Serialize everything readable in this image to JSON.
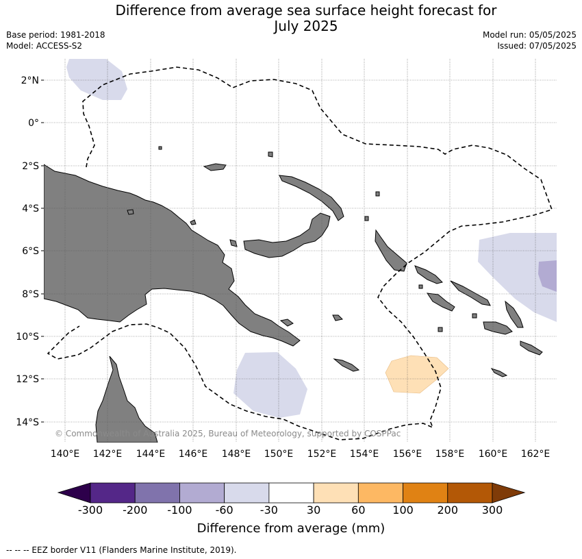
{
  "title_line1": "Difference from average sea surface height forecast for",
  "title_line2": "July 2025",
  "meta": {
    "base_period": "Base period: 1981-2018",
    "model": "Model: ACCESS-S2",
    "model_run": "Model run: 05/05/2025",
    "issued": "Issued: 07/05/2025"
  },
  "lat_labels": [
    "2°N",
    "0°",
    "2°S",
    "4°S",
    "6°S",
    "8°S",
    "10°S",
    "12°S",
    "14°S"
  ],
  "lon_labels": [
    "140°E",
    "142°E",
    "144°E",
    "146°E",
    "148°E",
    "150°E",
    "152°E",
    "154°E",
    "156°E",
    "158°E",
    "160°E",
    "162°E"
  ],
  "copyright": "© Commonwealth of Australia 2025, Bureau of Meteorology, supported by COSPPac",
  "colorbar": {
    "title": "Difference from average (mm)",
    "labels": [
      "-300",
      "-200",
      "-100",
      "-60",
      "-30",
      "30",
      "60",
      "100",
      "200",
      "300"
    ],
    "colors": [
      "#2d004b",
      "#542788",
      "#8073ac",
      "#b2abd2",
      "#d8daeb",
      "#ffffff",
      "#fee0b6",
      "#fdb863",
      "#e08214",
      "#b35806",
      "#7f3b08"
    ]
  },
  "footer": "--  --  -- EEZ border V11 (Flanders Marine Institute, 2019)."
}
